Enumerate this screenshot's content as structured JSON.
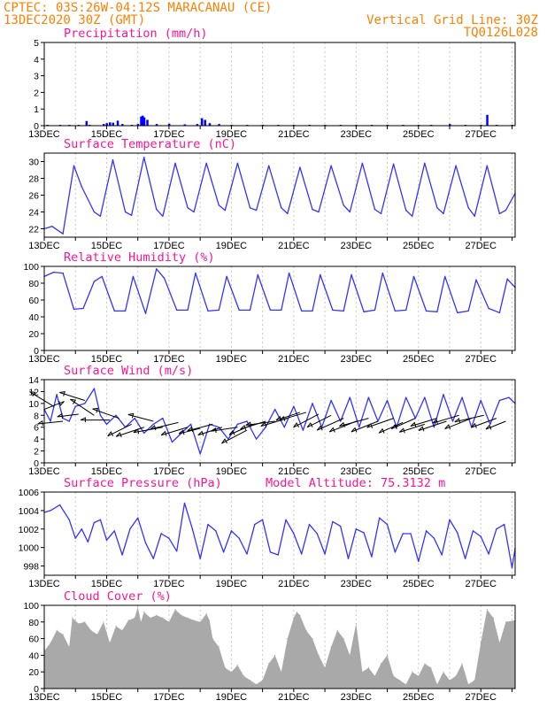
{
  "header": {
    "left1": "CPTEC:   03S:26W-04:12S  MARACANAU (CE)",
    "left2": "13DEC2020 30Z (GMT)",
    "right1": "Vertical Grid Line: 30Z",
    "right2": "TQ0126L028"
  },
  "colors": {
    "header": "#ff7f00",
    "title": "#ff1493",
    "line": "#3333ff",
    "bar": "#0000ff",
    "cloud": "#a9a9a9",
    "grid": "#c8c8c8"
  },
  "chart_data": [
    {
      "type": "bar",
      "title": "Precipitation (mm/h)",
      "ylim": [
        0,
        5
      ],
      "yticks": [
        "0",
        "1",
        "2",
        "3",
        "4",
        "5"
      ],
      "x_start_day": 13,
      "x_end_day": 28.1,
      "xticks": [
        "13DEC",
        "15DEC",
        "17DEC",
        "19DEC",
        "21DEC",
        "23DEC",
        "25DEC",
        "27DEC"
      ],
      "x": [
        13.1,
        13.5,
        13.8,
        14.1,
        14.35,
        14.45,
        14.9,
        15.0,
        15.1,
        15.2,
        15.35,
        15.5,
        15.8,
        16.0,
        16.1,
        16.15,
        16.2,
        16.3,
        16.6,
        17.0,
        17.5,
        17.9,
        18.05,
        18.15,
        18.3,
        18.6,
        19.0,
        19.5,
        20.0,
        20.5,
        21.0,
        21.5,
        22.0,
        22.5,
        23.0,
        23.5,
        24.0,
        24.5,
        25.0,
        25.4,
        26.0,
        26.5,
        27.0,
        27.2,
        27.5,
        28.0
      ],
      "values": [
        0.05,
        0.05,
        0.05,
        0.05,
        0.28,
        0.05,
        0.1,
        0.15,
        0.2,
        0.18,
        0.3,
        0.1,
        0.05,
        0.1,
        0.55,
        0.6,
        0.5,
        0.35,
        0.1,
        0.12,
        0.08,
        0.1,
        0.45,
        0.35,
        0.15,
        0.1,
        0.05,
        0.05,
        0.05,
        0.05,
        0.05,
        0.05,
        0.05,
        0.05,
        0.05,
        0.05,
        0.05,
        0.05,
        0.05,
        0.05,
        0.1,
        0.05,
        0.05,
        0.65,
        0.05,
        0.05
      ]
    },
    {
      "type": "line",
      "title": "Surface Temperature (nC)",
      "ylim": [
        21,
        31
      ],
      "yticks": [
        "22",
        "24",
        "26",
        "28",
        "30"
      ],
      "x_start_day": 13,
      "x_end_day": 28.1,
      "xticks": [
        "13DEC",
        "15DEC",
        "17DEC",
        "19DEC",
        "21DEC",
        "23DEC",
        "25DEC",
        "27DEC"
      ],
      "x": [
        13.0,
        13.25,
        13.6,
        13.95,
        14.2,
        14.6,
        14.8,
        15.2,
        15.6,
        15.8,
        16.2,
        16.6,
        16.8,
        17.2,
        17.6,
        17.8,
        18.2,
        18.6,
        18.8,
        19.2,
        19.6,
        19.8,
        20.2,
        20.6,
        20.8,
        21.2,
        21.6,
        21.8,
        22.2,
        22.6,
        22.8,
        23.2,
        23.6,
        23.8,
        24.2,
        24.6,
        24.8,
        25.2,
        25.6,
        25.8,
        26.2,
        26.6,
        26.8,
        27.2,
        27.6,
        27.8,
        28.1
      ],
      "values": [
        22.0,
        22.3,
        21.4,
        29.5,
        27.0,
        24.0,
        23.5,
        30.2,
        24.0,
        23.6,
        30.5,
        24.3,
        23.5,
        29.8,
        24.5,
        24.0,
        29.8,
        24.8,
        24.2,
        29.8,
        24.5,
        24.2,
        29.5,
        24.5,
        23.8,
        29.3,
        24.3,
        24.0,
        29.5,
        24.8,
        24.0,
        29.8,
        24.3,
        23.8,
        29.7,
        24.2,
        23.5,
        29.8,
        24.5,
        23.8,
        29.5,
        24.5,
        23.5,
        29.5,
        23.8,
        24.2,
        26.2
      ]
    },
    {
      "type": "line",
      "title": "Relative Humidity (%)",
      "ylim": [
        0,
        100
      ],
      "yticks": [
        "0",
        "20",
        "40",
        "60",
        "80",
        "100"
      ],
      "x_start_day": 13,
      "x_end_day": 28.1,
      "xticks": [
        "13DEC",
        "15DEC",
        "17DEC",
        "19DEC",
        "21DEC",
        "23DEC",
        "25DEC",
        "27DEC"
      ],
      "x": [
        13.0,
        13.3,
        13.6,
        13.95,
        14.25,
        14.6,
        14.85,
        15.25,
        15.6,
        15.85,
        16.25,
        16.6,
        16.85,
        17.25,
        17.6,
        17.85,
        18.25,
        18.6,
        18.85,
        19.25,
        19.6,
        19.85,
        20.25,
        20.6,
        20.85,
        21.25,
        21.6,
        21.85,
        22.25,
        22.6,
        22.85,
        23.25,
        23.6,
        23.85,
        24.25,
        24.6,
        24.85,
        25.25,
        25.6,
        25.85,
        26.25,
        26.6,
        26.85,
        27.25,
        27.6,
        27.85,
        28.1
      ],
      "values": [
        88,
        93,
        92,
        49,
        50,
        82,
        88,
        47,
        47,
        88,
        44,
        97,
        86,
        48,
        48,
        92,
        47,
        48,
        88,
        48,
        48,
        90,
        48,
        48,
        92,
        47,
        47,
        90,
        48,
        47,
        90,
        46,
        48,
        92,
        47,
        48,
        88,
        47,
        46,
        88,
        45,
        47,
        84,
        50,
        45,
        85,
        75
      ]
    },
    {
      "type": "line",
      "title": "Surface Wind (m/s)",
      "ylim": [
        0,
        14
      ],
      "yticks": [
        "0",
        "2",
        "4",
        "6",
        "8",
        "10",
        "12",
        "14"
      ],
      "x_start_day": 13,
      "x_end_day": 28.1,
      "xticks": [
        "13DEC",
        "15DEC",
        "17DEC",
        "19DEC",
        "21DEC",
        "23DEC",
        "25DEC",
        "27DEC"
      ],
      "x": [
        13.0,
        13.2,
        13.4,
        13.6,
        13.8,
        14.0,
        14.3,
        14.6,
        14.8,
        15.0,
        15.3,
        15.6,
        15.9,
        16.2,
        16.5,
        16.8,
        17.1,
        17.4,
        17.7,
        18.0,
        18.3,
        18.6,
        18.9,
        19.2,
        19.5,
        19.8,
        20.1,
        20.4,
        20.7,
        21.0,
        21.3,
        21.6,
        21.9,
        22.2,
        22.5,
        22.8,
        23.1,
        23.4,
        23.7,
        24.0,
        24.3,
        24.6,
        24.9,
        25.2,
        25.5,
        25.8,
        26.1,
        26.4,
        26.7,
        27.0,
        27.3,
        27.6,
        27.9,
        28.1
      ],
      "values": [
        9.0,
        7.0,
        11.5,
        7.5,
        7.0,
        9.5,
        10.0,
        12.5,
        8.0,
        6.5,
        8.0,
        6.0,
        7.5,
        5.0,
        6.5,
        7.5,
        3.5,
        5.0,
        6.5,
        1.5,
        6.5,
        6.0,
        4.0,
        6.5,
        7.0,
        4.0,
        6.0,
        9.0,
        6.0,
        9.5,
        5.5,
        10.0,
        6.0,
        10.5,
        7.0,
        11.0,
        6.0,
        11.0,
        7.0,
        10.5,
        6.0,
        11.0,
        7.5,
        11.0,
        6.0,
        11.5,
        7.0,
        11.0,
        6.0,
        10.5,
        6.5,
        10.5,
        11.0,
        10.0
      ],
      "arrows": [
        [
          13.0,
          9.0,
          1.5,
          0.6
        ],
        [
          13.3,
          9.5,
          -1.8,
          1.1
        ],
        [
          13.6,
          7.0,
          -1.9,
          -0.2
        ],
        [
          14.1,
          8.2,
          -1.6,
          -0.2
        ],
        [
          14.3,
          10.5,
          -1.9,
          0.6
        ],
        [
          14.6,
          8.0,
          -1.8,
          1.2
        ],
        [
          15.1,
          7.2,
          -2.2,
          0
        ],
        [
          15.4,
          7.5,
          -2.0,
          0.7
        ],
        [
          15.8,
          6.5,
          -1.8,
          -0.9
        ],
        [
          16.2,
          6.0,
          -2.1,
          -0.7
        ],
        [
          16.5,
          7.0,
          -1.9,
          0.5
        ],
        [
          16.8,
          6.0,
          -2.2,
          -0.4
        ],
        [
          17.3,
          6.8,
          -2.1,
          -0.5
        ],
        [
          17.6,
          6.0,
          -2.0,
          -0.6
        ],
        [
          18.0,
          5.8,
          -1.6,
          -0.4
        ],
        [
          18.4,
          6.5,
          -1.9,
          -0.5
        ],
        [
          18.7,
          6.0,
          -1.8,
          -0.6
        ],
        [
          19.2,
          6.0,
          -2.0,
          -0.3
        ],
        [
          19.5,
          5.5,
          -1.9,
          -1.0
        ],
        [
          19.7,
          6.5,
          -1.8,
          -0.8
        ],
        [
          20.1,
          7.0,
          -1.9,
          -0.6
        ],
        [
          20.4,
          7.0,
          -2.2,
          -0.3
        ],
        [
          20.8,
          7.5,
          -2.0,
          -0.6
        ],
        [
          21.2,
          8.5,
          -1.8,
          -0.6
        ],
        [
          21.4,
          8.5,
          -2.0,
          -0.6
        ],
        [
          21.8,
          8.2,
          -1.9,
          -1.0
        ],
        [
          22.2,
          8.0,
          -1.8,
          -0.9
        ],
        [
          22.6,
          7.5,
          -2.0,
          -0.9
        ],
        [
          23.0,
          7.0,
          -2.0,
          -0.8
        ],
        [
          23.4,
          7.5,
          -2.2,
          -0.6
        ],
        [
          23.7,
          7.0,
          -2.0,
          -0.8
        ],
        [
          24.2,
          7.5,
          -2.0,
          -0.7
        ],
        [
          24.5,
          6.8,
          -1.8,
          -0.8
        ],
        [
          24.9,
          7.5,
          -1.8,
          -0.8
        ],
        [
          25.2,
          6.5,
          -1.9,
          -0.6
        ],
        [
          25.6,
          7.5,
          -2.0,
          -0.6
        ],
        [
          25.9,
          7.0,
          -2.1,
          -0.7
        ],
        [
          26.3,
          8.0,
          -2.0,
          -0.6
        ],
        [
          26.7,
          7.5,
          -2.0,
          -0.8
        ],
        [
          27.1,
          8.0,
          -2.2,
          -0.5
        ],
        [
          27.5,
          7.5,
          -1.9,
          -0.7
        ],
        [
          27.8,
          7.0,
          -1.5,
          -0.6
        ]
      ]
    },
    {
      "type": "line",
      "title": "Surface Pressure (hPa)",
      "annotation": "Model Altitude: 75.3132 m",
      "ylim": [
        997,
        1006
      ],
      "yticks": [
        "998",
        "1000",
        "1002",
        "1004",
        "1006"
      ],
      "x_start_day": 13,
      "x_end_day": 28.1,
      "xticks": [
        "13DEC",
        "15DEC",
        "17DEC",
        "19DEC",
        "21DEC",
        "23DEC",
        "25DEC",
        "27DEC"
      ],
      "x": [
        13.0,
        13.2,
        13.5,
        13.8,
        14.0,
        14.2,
        14.4,
        14.6,
        14.8,
        15.0,
        15.25,
        15.5,
        15.75,
        16.0,
        16.25,
        16.5,
        16.75,
        17.0,
        17.25,
        17.5,
        17.75,
        18.0,
        18.25,
        18.5,
        18.75,
        19.0,
        19.25,
        19.5,
        19.75,
        20.0,
        20.25,
        20.5,
        20.75,
        21.0,
        21.25,
        21.5,
        21.75,
        22.0,
        22.25,
        22.5,
        22.75,
        23.0,
        23.25,
        23.5,
        23.75,
        24.0,
        24.25,
        24.5,
        24.75,
        25.0,
        25.25,
        25.5,
        25.75,
        26.0,
        26.25,
        26.5,
        26.75,
        27.0,
        27.25,
        27.5,
        27.75,
        28.0,
        28.1
      ],
      "values": [
        1003.8,
        1004.0,
        1004.6,
        1003.0,
        1001.0,
        1002.0,
        1000.6,
        1002.7,
        1003.0,
        1000.8,
        1001.8,
        999.2,
        1002.0,
        1003.2,
        1000.5,
        998.8,
        1001.5,
        1001.0,
        999.6,
        1004.8,
        1002.0,
        998.8,
        1002.5,
        1001.8,
        999.5,
        1001.8,
        1001.0,
        999.3,
        1002.5,
        1003.0,
        999.5,
        999.2,
        1003.0,
        1001.5,
        999.3,
        1002.5,
        1001.5,
        999.3,
        1002.8,
        1002.3,
        998.8,
        1002.0,
        1001.6,
        999.0,
        1003.2,
        1002.5,
        999.5,
        1001.5,
        1001.5,
        998.5,
        1001.8,
        1001.0,
        999.2,
        1003.0,
        1001.6,
        998.8,
        1001.8,
        1001.2,
        999.3,
        1002.0,
        1002.5,
        997.8,
        999.9
      ]
    },
    {
      "type": "area",
      "title": "Cloud Cover (%)",
      "ylim": [
        0,
        100
      ],
      "yticks": [
        "0",
        "20",
        "40",
        "60",
        "80",
        "100"
      ],
      "x_start_day": 13,
      "x_end_day": 28.1,
      "xticks": [
        "13DEC",
        "15DEC",
        "17DEC",
        "19DEC",
        "21DEC",
        "23DEC",
        "25DEC",
        "27DEC"
      ],
      "x": [
        13.0,
        13.2,
        13.4,
        13.6,
        13.8,
        13.9,
        14.1,
        14.3,
        14.5,
        14.7,
        14.9,
        15.1,
        15.3,
        15.5,
        15.7,
        15.9,
        16.0,
        16.1,
        16.2,
        16.4,
        16.6,
        16.8,
        17.0,
        17.2,
        17.4,
        17.6,
        17.8,
        18.0,
        18.2,
        18.3,
        18.4,
        18.6,
        18.8,
        19.0,
        19.2,
        19.4,
        19.6,
        19.8,
        20.0,
        20.2,
        20.4,
        20.6,
        20.8,
        21.0,
        21.1,
        21.2,
        21.4,
        21.6,
        21.8,
        22.0,
        22.2,
        22.4,
        22.6,
        22.8,
        23.0,
        23.2,
        23.4,
        23.6,
        23.8,
        24.0,
        24.2,
        24.4,
        24.6,
        24.8,
        25.0,
        25.2,
        25.4,
        25.6,
        25.8,
        26.0,
        26.2,
        26.4,
        26.6,
        26.8,
        27.0,
        27.2,
        27.4,
        27.6,
        27.8,
        28.1
      ],
      "values": [
        45,
        55,
        70,
        65,
        50,
        85,
        78,
        80,
        70,
        65,
        80,
        55,
        75,
        70,
        82,
        85,
        98,
        80,
        92,
        85,
        88,
        85,
        80,
        95,
        88,
        85,
        82,
        80,
        90,
        82,
        60,
        50,
        25,
        20,
        28,
        15,
        10,
        5,
        10,
        30,
        40,
        20,
        60,
        85,
        92,
        88,
        70,
        60,
        40,
        25,
        50,
        70,
        60,
        40,
        78,
        20,
        25,
        15,
        30,
        40,
        15,
        10,
        5,
        20,
        15,
        30,
        25,
        5,
        20,
        10,
        15,
        30,
        5,
        10,
        55,
        95,
        85,
        55,
        80,
        82
      ]
    }
  ]
}
